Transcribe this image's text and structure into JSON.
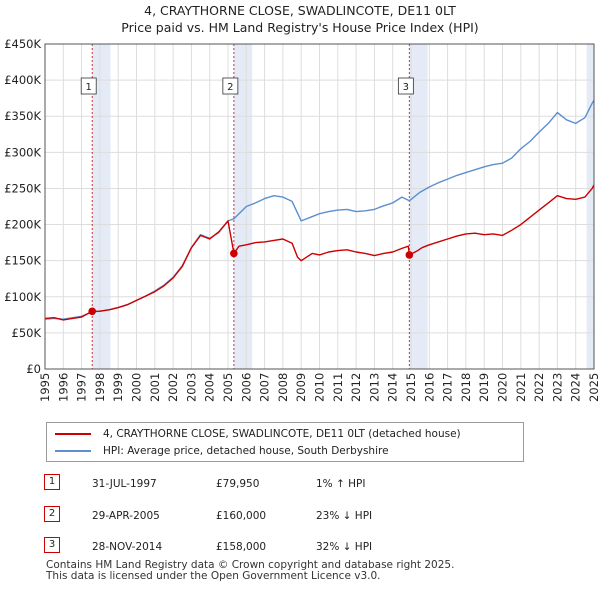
{
  "title_line1": "4, CRAYTHORNE CLOSE, SWADLINCOTE, DE11 0LT",
  "title_line2": "Price paid vs. HM Land Registry's House Price Index (HPI)",
  "colors": {
    "price": "#cc0000",
    "hpi": "#5b8fd0",
    "shade": "#e4ebf7",
    "grid": "#dddddd"
  },
  "chart_data": {
    "type": "line",
    "title": "4, CRAYTHORNE CLOSE, SWADLINCOTE, DE11 0LT — Price paid vs. HM Land Registry's House Price Index (HPI)",
    "xlabel": "",
    "ylabel": "",
    "xlim": [
      1995,
      2025
    ],
    "ylim": [
      0,
      450000
    ],
    "x_ticks": [
      "1995",
      "1996",
      "1997",
      "1998",
      "1999",
      "2000",
      "2001",
      "2002",
      "2003",
      "2004",
      "2005",
      "2006",
      "2007",
      "2008",
      "2009",
      "2010",
      "2011",
      "2012",
      "2013",
      "2014",
      "2015",
      "2016",
      "2017",
      "2018",
      "2019",
      "2020",
      "2021",
      "2022",
      "2023",
      "2024",
      "2025"
    ],
    "y_ticks": [
      0,
      50000,
      100000,
      150000,
      200000,
      250000,
      300000,
      350000,
      400000,
      450000
    ],
    "y_tick_labels": [
      "£0",
      "£50K",
      "£100K",
      "£150K",
      "£200K",
      "£250K",
      "£300K",
      "£350K",
      "£400K",
      "£450K"
    ],
    "grid": true,
    "series": [
      {
        "name": "4, CRAYTHORNE CLOSE, SWADLINCOTE, DE11 0LT (detached house)",
        "x": [
          1995.0,
          1995.5,
          1996.0,
          1996.5,
          1997.0,
          1997.58,
          1998.0,
          1998.5,
          1999.0,
          1999.5,
          2000.0,
          2000.5,
          2001.0,
          2001.5,
          2002.0,
          2002.5,
          2003.0,
          2003.5,
          2004.0,
          2004.5,
          2005.0,
          2005.32,
          2005.6,
          2006.0,
          2006.5,
          2007.0,
          2007.5,
          2008.0,
          2008.5,
          2008.8,
          2009.0,
          2009.3,
          2009.6,
          2010.0,
          2010.5,
          2011.0,
          2011.5,
          2012.0,
          2012.5,
          2013.0,
          2013.5,
          2014.0,
          2014.5,
          2014.85,
          2014.91,
          2015.3,
          2015.6,
          2016.0,
          2016.5,
          2017.0,
          2017.5,
          2018.0,
          2018.5,
          2019.0,
          2019.5,
          2020.0,
          2020.5,
          2021.0,
          2021.5,
          2022.0,
          2022.5,
          2023.0,
          2023.5,
          2024.0,
          2024.5,
          2024.9,
          2025.0
        ],
        "values": [
          70000,
          71000,
          68000,
          70000,
          72000,
          79950,
          80000,
          82000,
          85000,
          89000,
          95000,
          101000,
          107000,
          115000,
          126000,
          142000,
          168000,
          185000,
          180000,
          190000,
          205000,
          160000,
          170000,
          172000,
          175000,
          176000,
          178000,
          180000,
          174000,
          155000,
          150000,
          155000,
          160000,
          158000,
          162000,
          164000,
          165000,
          162000,
          160000,
          157000,
          160000,
          162000,
          167000,
          170000,
          158000,
          163000,
          168000,
          172000,
          176000,
          180000,
          184000,
          187000,
          188000,
          186000,
          187000,
          185000,
          192000,
          200000,
          210000,
          220000,
          230000,
          240000,
          236000,
          235000,
          238000,
          250000,
          255000
        ]
      },
      {
        "name": "HPI: Average price, detached house, South Derbyshire",
        "x": [
          1995.0,
          1995.5,
          1996.0,
          1996.5,
          1997.0,
          1997.58,
          1998.0,
          1998.5,
          1999.0,
          1999.5,
          2000.0,
          2000.5,
          2001.0,
          2001.5,
          2002.0,
          2002.5,
          2003.0,
          2003.5,
          2004.0,
          2004.5,
          2005.0,
          2005.32,
          2006.0,
          2006.5,
          2007.0,
          2007.5,
          2008.0,
          2008.5,
          2009.0,
          2009.5,
          2010.0,
          2010.5,
          2011.0,
          2011.5,
          2012.0,
          2012.5,
          2013.0,
          2013.5,
          2014.0,
          2014.5,
          2014.91,
          2015.5,
          2016.0,
          2016.5,
          2017.0,
          2017.5,
          2018.0,
          2018.5,
          2019.0,
          2019.5,
          2020.0,
          2020.5,
          2021.0,
          2021.5,
          2022.0,
          2022.5,
          2023.0,
          2023.5,
          2024.0,
          2024.5,
          2024.9,
          2025.0
        ],
        "values": [
          69000,
          70000,
          69000,
          71000,
          73000,
          79000,
          80000,
          82000,
          85000,
          89000,
          95000,
          101000,
          108000,
          116000,
          127000,
          143000,
          168000,
          186000,
          181000,
          189000,
          205000,
          208000,
          225000,
          230000,
          236000,
          240000,
          238000,
          232000,
          205000,
          210000,
          215000,
          218000,
          220000,
          221000,
          218000,
          219000,
          221000,
          226000,
          230000,
          238000,
          233000,
          245000,
          252000,
          258000,
          263000,
          268000,
          272000,
          276000,
          280000,
          283000,
          285000,
          292000,
          305000,
          315000,
          328000,
          340000,
          355000,
          345000,
          340000,
          348000,
          368000,
          372000
        ]
      }
    ],
    "annotations": [
      {
        "label": "1",
        "x": 1997.58,
        "value": 79950
      },
      {
        "label": "2",
        "x": 2005.32,
        "value": 160000
      },
      {
        "label": "3",
        "x": 2014.91,
        "value": 158000
      }
    ]
  },
  "legend": {
    "price_label": "4, CRAYTHORNE CLOSE, SWADLINCOTE, DE11 0LT (detached house)",
    "hpi_label": "HPI: Average price, detached house, South Derbyshire"
  },
  "sales": [
    {
      "num": "1",
      "date": "31-JUL-1997",
      "price": "£79,950",
      "hpi": "1% ↑ HPI"
    },
    {
      "num": "2",
      "date": "29-APR-2005",
      "price": "£160,000",
      "hpi": "23% ↓ HPI"
    },
    {
      "num": "3",
      "date": "28-NOV-2014",
      "price": "£158,000",
      "hpi": "32% ↓ HPI"
    }
  ],
  "footer_line1": "Contains HM Land Registry data © Crown copyright and database right 2025.",
  "footer_line2": "This data is licensed under the Open Government Licence v3.0."
}
